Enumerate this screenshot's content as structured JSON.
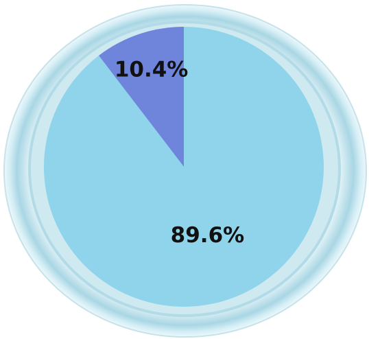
{
  "chart_data": {
    "type": "pie",
    "values": [
      10.4,
      89.6
    ],
    "value_labels": [
      "10.4%",
      "89.6%"
    ],
    "colors": [
      "#6f84db",
      "#8fd4ea"
    ]
  }
}
